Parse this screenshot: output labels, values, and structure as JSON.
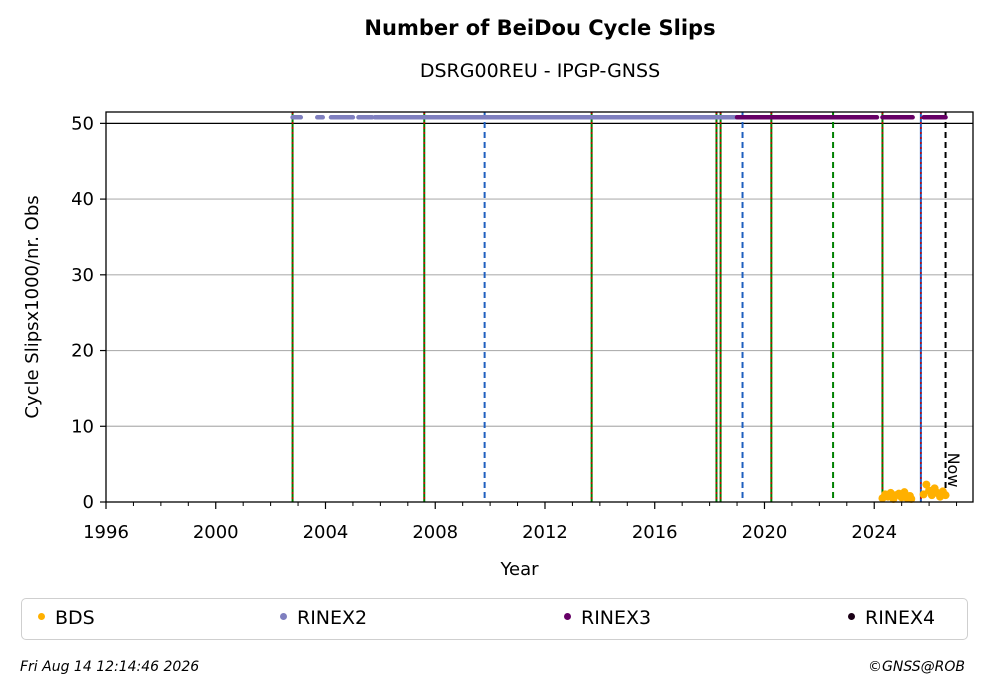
{
  "chart_data": {
    "type": "scatter",
    "title": "Number of BeiDou Cycle Slips",
    "subtitle": "DSRG00REU - IPGP-GNSS",
    "xlabel": "Year",
    "ylabel": "Cycle Slipsx1000/nr. Obs",
    "xlim": [
      1996,
      2027.6
    ],
    "ylim": [
      0,
      51.5
    ],
    "x_ticks": [
      "1996",
      "2000",
      "2004",
      "2008",
      "2012",
      "2016",
      "2020",
      "2024"
    ],
    "y_ticks": [
      "0",
      "10",
      "20",
      "30",
      "40",
      "50"
    ],
    "grid": "horizontal",
    "legend_position": "bottom",
    "now_label": "Now",
    "now_year": 2026.6,
    "series": [
      {
        "name": "BDS",
        "color": "#ffb000",
        "points": [
          [
            2024.3,
            0.5
          ],
          [
            2024.4,
            1.0
          ],
          [
            2024.5,
            0.7
          ],
          [
            2024.6,
            1.2
          ],
          [
            2024.7,
            0.4
          ],
          [
            2024.8,
            0.9
          ],
          [
            2024.9,
            1.1
          ],
          [
            2025.0,
            0.6
          ],
          [
            2025.1,
            1.3
          ],
          [
            2025.2,
            0.5
          ],
          [
            2025.3,
            0.8
          ],
          [
            2025.35,
            0.4
          ],
          [
            2025.8,
            1.0
          ],
          [
            2025.9,
            2.3
          ],
          [
            2026.0,
            1.5
          ],
          [
            2026.1,
            0.9
          ],
          [
            2026.2,
            1.8
          ],
          [
            2026.3,
            1.2
          ],
          [
            2026.4,
            0.7
          ],
          [
            2026.5,
            1.4
          ],
          [
            2026.6,
            0.9
          ]
        ]
      },
      {
        "name": "RINEX2",
        "color": "#7f7fbf",
        "segments": [
          [
            2002.8,
            2003.1
          ],
          [
            2003.7,
            2003.9
          ],
          [
            2004.2,
            2005.0
          ],
          [
            2005.2,
            2005.7
          ],
          [
            2005.8,
            2019.0
          ]
        ],
        "value": 50.8
      },
      {
        "name": "RINEX3",
        "color": "#660066",
        "segments": [
          [
            2019.0,
            2024.1
          ],
          [
            2024.3,
            2025.4
          ],
          [
            2025.8,
            2026.6
          ]
        ],
        "value": 50.8
      },
      {
        "name": "RINEX4",
        "color": "#1a0016",
        "segments": [],
        "value": 50.8
      }
    ],
    "event_lines": [
      {
        "year": 2002.8,
        "style": "green-red"
      },
      {
        "year": 2007.6,
        "style": "green-red"
      },
      {
        "year": 2009.8,
        "style": "blue"
      },
      {
        "year": 2013.7,
        "style": "green-red"
      },
      {
        "year": 2018.25,
        "style": "green-red"
      },
      {
        "year": 2018.4,
        "style": "green-red"
      },
      {
        "year": 2019.2,
        "style": "blue"
      },
      {
        "year": 2020.25,
        "style": "green-red"
      },
      {
        "year": 2022.5,
        "style": "green"
      },
      {
        "year": 2024.3,
        "style": "green-red"
      },
      {
        "year": 2025.7,
        "style": "blue-red"
      }
    ],
    "colors": {
      "green": "#008000",
      "red": "#cc0000",
      "blue": "#1f5fbf",
      "now": "#000000",
      "grid": "#b0b0b0"
    }
  },
  "footer": {
    "timestamp": "Fri Aug 14 12:14:46 2026",
    "copyright": "©GNSS@ROB"
  }
}
